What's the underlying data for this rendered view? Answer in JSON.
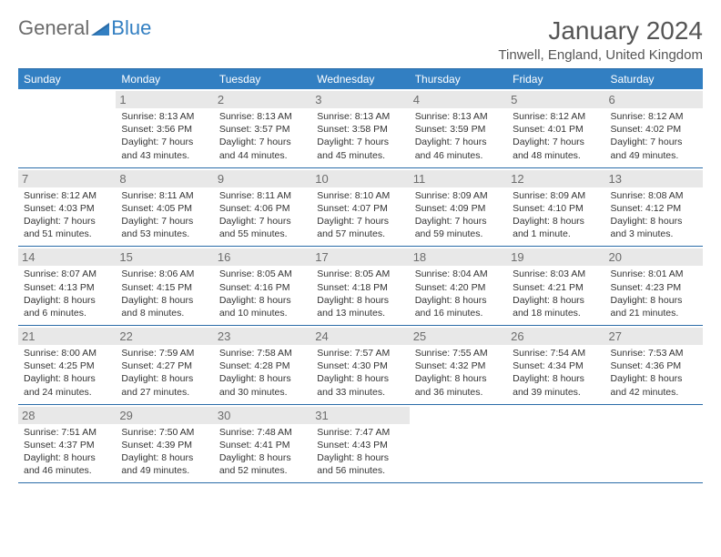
{
  "logo": {
    "general": "General",
    "blue": "Blue"
  },
  "header": {
    "title": "January 2024",
    "location": "Tinwell, England, United Kingdom"
  },
  "colors": {
    "header_bg": "#327fc2",
    "header_text": "#ffffff",
    "border": "#2a6ca8",
    "daynum_bg": "#e8e8e8",
    "daynum_text": "#6d6d6d",
    "body_text": "#333333",
    "logo_gray": "#6b6b6b",
    "logo_blue": "#327fc2"
  },
  "calendar": {
    "columns": [
      "Sunday",
      "Monday",
      "Tuesday",
      "Wednesday",
      "Thursday",
      "Friday",
      "Saturday"
    ],
    "weeks": [
      [
        {
          "day": "",
          "sunrise": "",
          "sunset": "",
          "daylight": ""
        },
        {
          "day": "1",
          "sunrise": "Sunrise: 8:13 AM",
          "sunset": "Sunset: 3:56 PM",
          "daylight": "Daylight: 7 hours and 43 minutes."
        },
        {
          "day": "2",
          "sunrise": "Sunrise: 8:13 AM",
          "sunset": "Sunset: 3:57 PM",
          "daylight": "Daylight: 7 hours and 44 minutes."
        },
        {
          "day": "3",
          "sunrise": "Sunrise: 8:13 AM",
          "sunset": "Sunset: 3:58 PM",
          "daylight": "Daylight: 7 hours and 45 minutes."
        },
        {
          "day": "4",
          "sunrise": "Sunrise: 8:13 AM",
          "sunset": "Sunset: 3:59 PM",
          "daylight": "Daylight: 7 hours and 46 minutes."
        },
        {
          "day": "5",
          "sunrise": "Sunrise: 8:12 AM",
          "sunset": "Sunset: 4:01 PM",
          "daylight": "Daylight: 7 hours and 48 minutes."
        },
        {
          "day": "6",
          "sunrise": "Sunrise: 8:12 AM",
          "sunset": "Sunset: 4:02 PM",
          "daylight": "Daylight: 7 hours and 49 minutes."
        }
      ],
      [
        {
          "day": "7",
          "sunrise": "Sunrise: 8:12 AM",
          "sunset": "Sunset: 4:03 PM",
          "daylight": "Daylight: 7 hours and 51 minutes."
        },
        {
          "day": "8",
          "sunrise": "Sunrise: 8:11 AM",
          "sunset": "Sunset: 4:05 PM",
          "daylight": "Daylight: 7 hours and 53 minutes."
        },
        {
          "day": "9",
          "sunrise": "Sunrise: 8:11 AM",
          "sunset": "Sunset: 4:06 PM",
          "daylight": "Daylight: 7 hours and 55 minutes."
        },
        {
          "day": "10",
          "sunrise": "Sunrise: 8:10 AM",
          "sunset": "Sunset: 4:07 PM",
          "daylight": "Daylight: 7 hours and 57 minutes."
        },
        {
          "day": "11",
          "sunrise": "Sunrise: 8:09 AM",
          "sunset": "Sunset: 4:09 PM",
          "daylight": "Daylight: 7 hours and 59 minutes."
        },
        {
          "day": "12",
          "sunrise": "Sunrise: 8:09 AM",
          "sunset": "Sunset: 4:10 PM",
          "daylight": "Daylight: 8 hours and 1 minute."
        },
        {
          "day": "13",
          "sunrise": "Sunrise: 8:08 AM",
          "sunset": "Sunset: 4:12 PM",
          "daylight": "Daylight: 8 hours and 3 minutes."
        }
      ],
      [
        {
          "day": "14",
          "sunrise": "Sunrise: 8:07 AM",
          "sunset": "Sunset: 4:13 PM",
          "daylight": "Daylight: 8 hours and 6 minutes."
        },
        {
          "day": "15",
          "sunrise": "Sunrise: 8:06 AM",
          "sunset": "Sunset: 4:15 PM",
          "daylight": "Daylight: 8 hours and 8 minutes."
        },
        {
          "day": "16",
          "sunrise": "Sunrise: 8:05 AM",
          "sunset": "Sunset: 4:16 PM",
          "daylight": "Daylight: 8 hours and 10 minutes."
        },
        {
          "day": "17",
          "sunrise": "Sunrise: 8:05 AM",
          "sunset": "Sunset: 4:18 PM",
          "daylight": "Daylight: 8 hours and 13 minutes."
        },
        {
          "day": "18",
          "sunrise": "Sunrise: 8:04 AM",
          "sunset": "Sunset: 4:20 PM",
          "daylight": "Daylight: 8 hours and 16 minutes."
        },
        {
          "day": "19",
          "sunrise": "Sunrise: 8:03 AM",
          "sunset": "Sunset: 4:21 PM",
          "daylight": "Daylight: 8 hours and 18 minutes."
        },
        {
          "day": "20",
          "sunrise": "Sunrise: 8:01 AM",
          "sunset": "Sunset: 4:23 PM",
          "daylight": "Daylight: 8 hours and 21 minutes."
        }
      ],
      [
        {
          "day": "21",
          "sunrise": "Sunrise: 8:00 AM",
          "sunset": "Sunset: 4:25 PM",
          "daylight": "Daylight: 8 hours and 24 minutes."
        },
        {
          "day": "22",
          "sunrise": "Sunrise: 7:59 AM",
          "sunset": "Sunset: 4:27 PM",
          "daylight": "Daylight: 8 hours and 27 minutes."
        },
        {
          "day": "23",
          "sunrise": "Sunrise: 7:58 AM",
          "sunset": "Sunset: 4:28 PM",
          "daylight": "Daylight: 8 hours and 30 minutes."
        },
        {
          "day": "24",
          "sunrise": "Sunrise: 7:57 AM",
          "sunset": "Sunset: 4:30 PM",
          "daylight": "Daylight: 8 hours and 33 minutes."
        },
        {
          "day": "25",
          "sunrise": "Sunrise: 7:55 AM",
          "sunset": "Sunset: 4:32 PM",
          "daylight": "Daylight: 8 hours and 36 minutes."
        },
        {
          "day": "26",
          "sunrise": "Sunrise: 7:54 AM",
          "sunset": "Sunset: 4:34 PM",
          "daylight": "Daylight: 8 hours and 39 minutes."
        },
        {
          "day": "27",
          "sunrise": "Sunrise: 7:53 AM",
          "sunset": "Sunset: 4:36 PM",
          "daylight": "Daylight: 8 hours and 42 minutes."
        }
      ],
      [
        {
          "day": "28",
          "sunrise": "Sunrise: 7:51 AM",
          "sunset": "Sunset: 4:37 PM",
          "daylight": "Daylight: 8 hours and 46 minutes."
        },
        {
          "day": "29",
          "sunrise": "Sunrise: 7:50 AM",
          "sunset": "Sunset: 4:39 PM",
          "daylight": "Daylight: 8 hours and 49 minutes."
        },
        {
          "day": "30",
          "sunrise": "Sunrise: 7:48 AM",
          "sunset": "Sunset: 4:41 PM",
          "daylight": "Daylight: 8 hours and 52 minutes."
        },
        {
          "day": "31",
          "sunrise": "Sunrise: 7:47 AM",
          "sunset": "Sunset: 4:43 PM",
          "daylight": "Daylight: 8 hours and 56 minutes."
        },
        {
          "day": "",
          "sunrise": "",
          "sunset": "",
          "daylight": ""
        },
        {
          "day": "",
          "sunrise": "",
          "sunset": "",
          "daylight": ""
        },
        {
          "day": "",
          "sunrise": "",
          "sunset": "",
          "daylight": ""
        }
      ]
    ]
  }
}
